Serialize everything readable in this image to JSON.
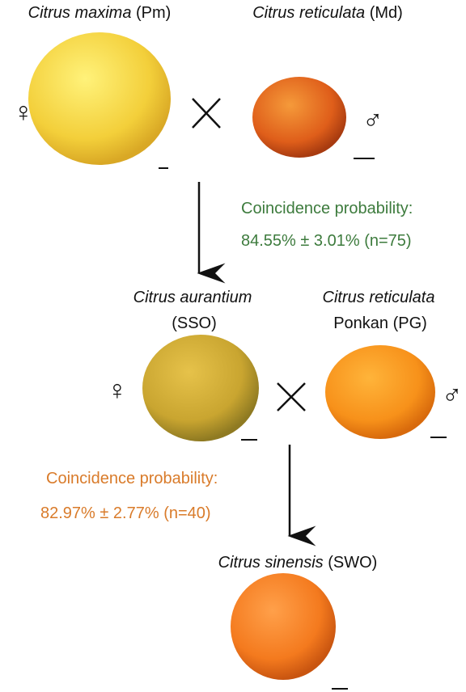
{
  "nodes": [
    {
      "species": "Citrus maxima",
      "code": "(Pm)",
      "sex": "♀"
    },
    {
      "species": "Citrus reticulata",
      "code": "(Md)",
      "sex": "♂"
    },
    {
      "species": "Citrus aurantium",
      "code": "(SSO)",
      "sex": "♀"
    },
    {
      "species": "Citrus reticulata",
      "code": "Ponkan (PG)",
      "sex": "♂"
    },
    {
      "species": "Citrus sinensis",
      "code": "(SWO)"
    }
  ],
  "crosses": [
    {
      "label": "Coincidence probability:",
      "value": "84.55% ± 3.01% (n=75)"
    },
    {
      "label": "Coincidence probability:",
      "value": "82.97% ± 2.77% (n=40)"
    }
  ]
}
